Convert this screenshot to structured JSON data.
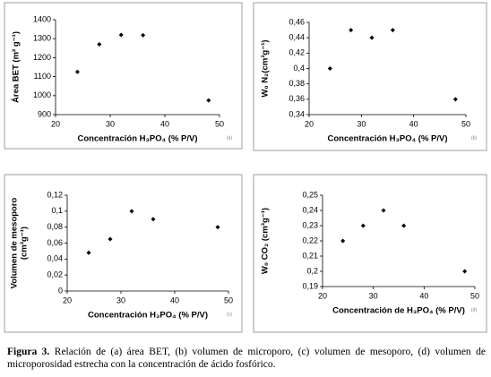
{
  "chart_data": [
    {
      "type": "scatter",
      "panel_label": "(a)",
      "xlabel": "Concentración  H₃PO₄ (% P/V)",
      "ylabel": [
        "Área BET (m² g⁻¹)"
      ],
      "x": [
        24,
        28,
        32,
        36,
        48
      ],
      "values": [
        1125,
        1270,
        1320,
        1318,
        975
      ],
      "color": "#000000",
      "xlim": [
        20,
        50
      ],
      "xticks": [
        20,
        30,
        40,
        50
      ],
      "ylim": [
        900,
        1400
      ],
      "yticks": [
        900,
        1000,
        1100,
        1200,
        1300,
        1400
      ]
    },
    {
      "type": "scatter",
      "panel_label": "(b)",
      "xlabel": "Concentración  H₃PO₄ (% P/V)",
      "ylabel": [
        "W₀  N₂(cm³g⁻¹)"
      ],
      "x": [
        24,
        28,
        32,
        36,
        48
      ],
      "values": [
        0.4,
        0.45,
        0.44,
        0.45,
        0.36
      ],
      "color": "#000000",
      "xlim": [
        20,
        50
      ],
      "xticks": [
        20,
        30,
        40,
        50
      ],
      "ylim": [
        0.34,
        0.46
      ],
      "yticks": [
        {
          "value": 0.34,
          "label": "0,34"
        },
        {
          "value": 0.36,
          "label": "0,36"
        },
        {
          "value": 0.38,
          "label": "0,38"
        },
        {
          "value": 0.4,
          "label": "0,4"
        },
        {
          "value": 0.42,
          "label": "0,42"
        },
        {
          "value": 0.44,
          "label": "0,44"
        },
        {
          "value": 0.46,
          "label": "0,46"
        }
      ]
    },
    {
      "type": "scatter",
      "panel_label": "(c)",
      "xlabel": "Concentración H₃PO₄ (% P/V)",
      "ylabel": [
        "Volumen de mesoporo",
        "(cm³g⁻¹)"
      ],
      "x": [
        24,
        28,
        32,
        36,
        48
      ],
      "values": [
        0.048,
        0.065,
        0.1,
        0.09,
        0.08
      ],
      "color": "#000000",
      "xlim": [
        20,
        50
      ],
      "xticks": [
        20,
        30,
        40,
        50
      ],
      "ylim": [
        0,
        0.12
      ],
      "yticks": [
        0,
        {
          "value": 0.02,
          "label": "0,02"
        },
        {
          "value": 0.04,
          "label": "0,04"
        },
        {
          "value": 0.06,
          "label": "0,06"
        },
        {
          "value": 0.08,
          "label": "0,08"
        },
        {
          "value": 0.1,
          "label": "0,1"
        },
        {
          "value": 0.12,
          "label": "0,12"
        }
      ]
    },
    {
      "type": "scatter",
      "panel_label": "(d)",
      "xlabel": "Concentración de H₃PO₄ (% P/V)",
      "ylabel": [
        "W₀  CO₂ (cm³g⁻¹)"
      ],
      "x": [
        24,
        28,
        32,
        36,
        48
      ],
      "values": [
        0.22,
        0.23,
        0.24,
        0.23,
        0.2
      ],
      "color": "#000000",
      "xlim": [
        20,
        50
      ],
      "xticks": [
        20,
        30,
        40,
        50
      ],
      "ylim": [
        0.19,
        0.25
      ],
      "yticks": [
        {
          "value": 0.19,
          "label": "0,19"
        },
        {
          "value": 0.2,
          "label": "0,2"
        },
        {
          "value": 0.21,
          "label": "0,21"
        },
        {
          "value": 0.22,
          "label": "0,22"
        },
        {
          "value": 0.23,
          "label": "0,23"
        },
        {
          "value": 0.24,
          "label": "0,24"
        },
        {
          "value": 0.25,
          "label": "0,25"
        }
      ]
    }
  ],
  "caption": {
    "label": "Figura 3.",
    "text": "Relación de (a) área BET, (b) volumen de microporo, (c) volumen de mesoporo, (d) volumen de microporosidad estrecha con la concentración de ácido fosfórico."
  }
}
